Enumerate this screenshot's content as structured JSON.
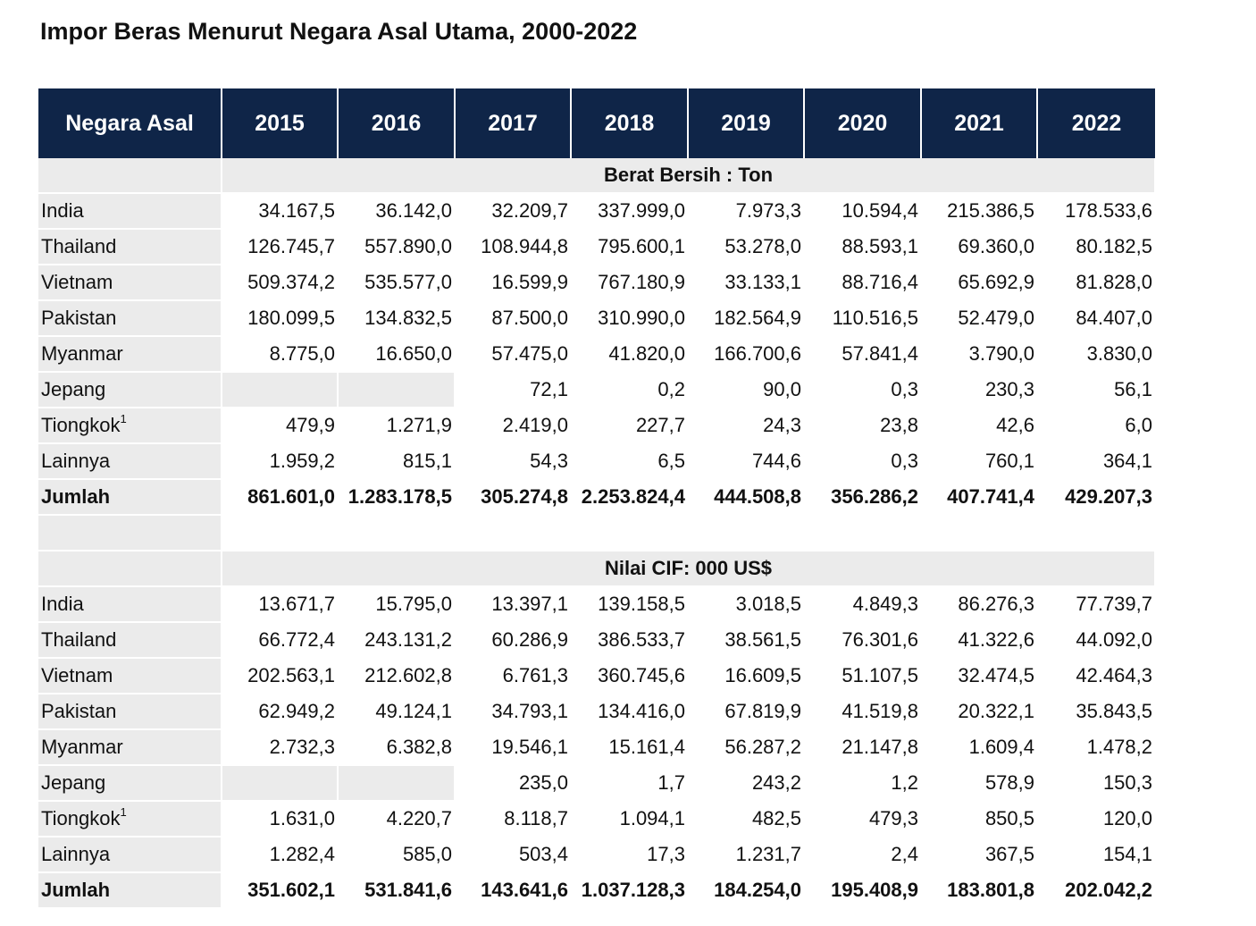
{
  "title": "Impor Beras Menurut Negara Asal Utama, 2000-2022",
  "headers": [
    "Negara Asal",
    "2015",
    "2016",
    "2017",
    "2018",
    "2019",
    "2020",
    "2021",
    "2022"
  ],
  "sections": [
    {
      "label": "Berat Bersih : Ton",
      "rows": [
        {
          "country": "India",
          "sup": "",
          "values": [
            "34.167,5",
            "36.142,0",
            "32.209,7",
            "337.999,0",
            "7.973,3",
            "10.594,4",
            "215.386,5",
            "178.533,6"
          ]
        },
        {
          "country": "Thailand",
          "sup": "",
          "values": [
            "126.745,7",
            "557.890,0",
            "108.944,8",
            "795.600,1",
            "53.278,0",
            "88.593,1",
            "69.360,0",
            "80.182,5"
          ]
        },
        {
          "country": "Vietnam",
          "sup": "",
          "values": [
            "509.374,2",
            "535.577,0",
            "16.599,9",
            "767.180,9",
            "33.133,1",
            "88.716,4",
            "65.692,9",
            "81.828,0"
          ]
        },
        {
          "country": "Pakistan",
          "sup": "",
          "values": [
            "180.099,5",
            "134.832,5",
            "87.500,0",
            "310.990,0",
            "182.564,9",
            "110.516,5",
            "52.479,0",
            "84.407,0"
          ]
        },
        {
          "country": "Myanmar",
          "sup": "",
          "values": [
            "8.775,0",
            "16.650,0",
            "57.475,0",
            "41.820,0",
            "166.700,6",
            "57.841,4",
            "3.790,0",
            "3.830,0"
          ]
        },
        {
          "country": "Jepang",
          "sup": "",
          "values": [
            "",
            "",
            "72,1",
            "0,2",
            "90,0",
            "0,3",
            "230,3",
            "56,1"
          ]
        },
        {
          "country": "Tiongkok",
          "sup": "1",
          "values": [
            "479,9",
            "1.271,9",
            "2.419,0",
            "227,7",
            "24,3",
            "23,8",
            "42,6",
            "6,0"
          ]
        },
        {
          "country": "Lainnya",
          "sup": "",
          "values": [
            "1.959,2",
            "815,1",
            "54,3",
            "6,5",
            "744,6",
            "0,3",
            "760,1",
            "364,1"
          ]
        }
      ],
      "total": {
        "label": "Jumlah",
        "values": [
          "861.601,0",
          "1.283.178,5",
          "305.274,8",
          "2.253.824,4",
          "444.508,8",
          "356.286,2",
          "407.741,4",
          "429.207,3"
        ]
      }
    },
    {
      "label": "Nilai CIF: 000 US$",
      "rows": [
        {
          "country": "India",
          "sup": "",
          "values": [
            "13.671,7",
            "15.795,0",
            "13.397,1",
            "139.158,5",
            "3.018,5",
            "4.849,3",
            "86.276,3",
            "77.739,7"
          ]
        },
        {
          "country": "Thailand",
          "sup": "",
          "values": [
            "66.772,4",
            "243.131,2",
            "60.286,9",
            "386.533,7",
            "38.561,5",
            "76.301,6",
            "41.322,6",
            "44.092,0"
          ]
        },
        {
          "country": "Vietnam",
          "sup": "",
          "values": [
            "202.563,1",
            "212.602,8",
            "6.761,3",
            "360.745,6",
            "16.609,5",
            "51.107,5",
            "32.474,5",
            "42.464,3"
          ]
        },
        {
          "country": "Pakistan",
          "sup": "",
          "values": [
            "62.949,2",
            "49.124,1",
            "34.793,1",
            "134.416,0",
            "67.819,9",
            "41.519,8",
            "20.322,1",
            "35.843,5"
          ]
        },
        {
          "country": "Myanmar",
          "sup": "",
          "values": [
            "2.732,3",
            "6.382,8",
            "19.546,1",
            "15.161,4",
            "56.287,2",
            "21.147,8",
            "1.609,4",
            "1.478,2"
          ]
        },
        {
          "country": "Jepang",
          "sup": "",
          "values": [
            "",
            "",
            "235,0",
            "1,7",
            "243,2",
            "1,2",
            "578,9",
            "150,3"
          ]
        },
        {
          "country": "Tiongkok",
          "sup": "1",
          "values": [
            "1.631,0",
            "4.220,7",
            "8.118,7",
            "1.094,1",
            "482,5",
            "479,3",
            "850,5",
            "120,0"
          ]
        },
        {
          "country": "Lainnya",
          "sup": "",
          "values": [
            "1.282,4",
            "585,0",
            "503,4",
            "17,3",
            "1.231,7",
            "2,4",
            "367,5",
            "154,1"
          ]
        }
      ],
      "total": {
        "label": "Jumlah",
        "values": [
          "351.602,1",
          "531.841,6",
          "143.641,6",
          "1.037.128,3",
          "184.254,0",
          "195.408,9",
          "183.801,8",
          "202.042,2"
        ]
      }
    }
  ]
}
